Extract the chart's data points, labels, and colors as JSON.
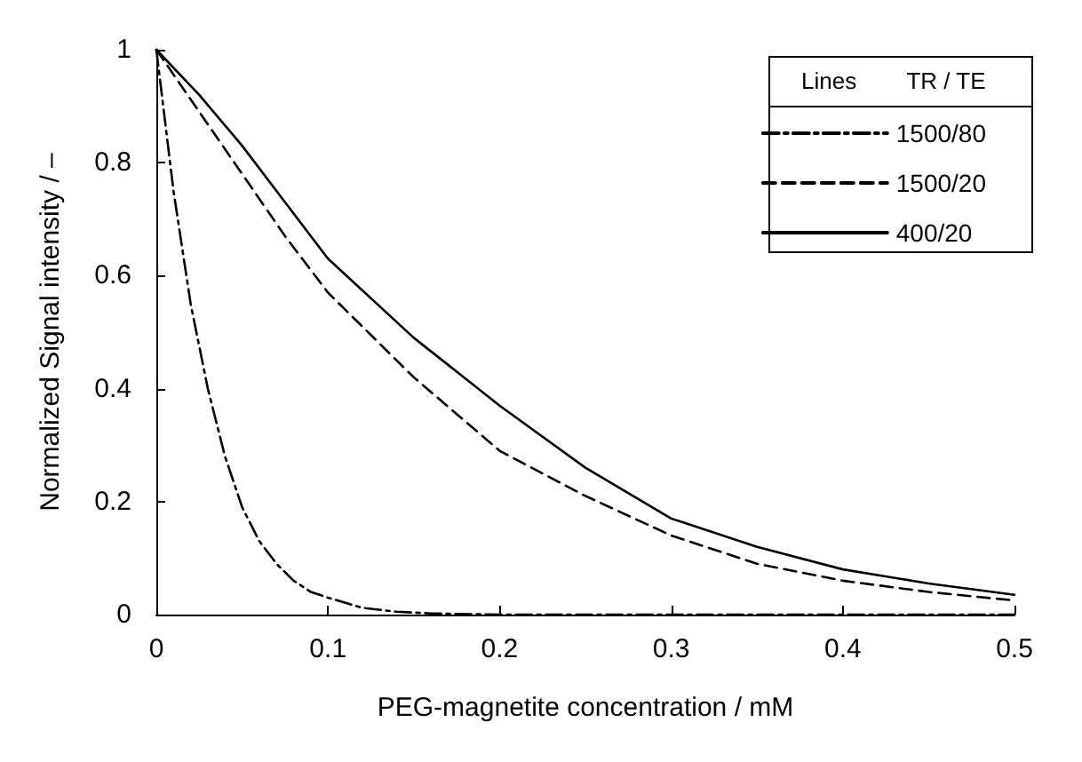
{
  "chart_data": {
    "type": "line",
    "xlabel": "PEG-magnetite concentration / mM",
    "ylabel": "Normalized Signal intensity / –",
    "legend_title": "TR / TE",
    "annotations": [
      "Lines"
    ],
    "legend": "top right",
    "grid": false,
    "marker": "none",
    "xlim": [
      0,
      0.5
    ],
    "xticks": [
      0,
      0.1,
      0.2,
      0.3,
      0.4,
      0.5
    ],
    "ylim": [
      0,
      1
    ],
    "yticks": [
      0,
      0.2,
      0.4,
      0.6,
      0.8,
      1
    ],
    "series": [
      {
        "name": "1500/80",
        "color": "#000000",
        "line_style": "dashdot",
        "x": [
          0,
          0.01,
          0.02,
          0.03,
          0.04,
          0.05,
          0.06,
          0.07,
          0.08,
          0.09,
          0.1,
          0.12,
          0.14,
          0.16,
          0.2,
          0.3,
          0.4,
          0.5
        ],
        "values": [
          1,
          0.75,
          0.55,
          0.4,
          0.28,
          0.19,
          0.13,
          0.09,
          0.06,
          0.04,
          0.03,
          0.012,
          0.005,
          0.002,
          0,
          0,
          0,
          0
        ]
      },
      {
        "name": "1500/20",
        "color": "#000000",
        "line_style": "dashed",
        "x": [
          0,
          0.025,
          0.05,
          0.075,
          0.1,
          0.15,
          0.2,
          0.25,
          0.3,
          0.35,
          0.4,
          0.45,
          0.5
        ],
        "values": [
          1,
          0.89,
          0.78,
          0.67,
          0.57,
          0.42,
          0.29,
          0.21,
          0.14,
          0.09,
          0.06,
          0.04,
          0.025
        ]
      },
      {
        "name": "400/20",
        "color": "#000000",
        "line_style": "solid",
        "x": [
          0,
          0.025,
          0.05,
          0.075,
          0.1,
          0.15,
          0.2,
          0.25,
          0.3,
          0.35,
          0.4,
          0.45,
          0.5
        ],
        "values": [
          1,
          0.92,
          0.83,
          0.73,
          0.63,
          0.49,
          0.37,
          0.26,
          0.17,
          0.12,
          0.08,
          0.055,
          0.035
        ]
      }
    ]
  }
}
